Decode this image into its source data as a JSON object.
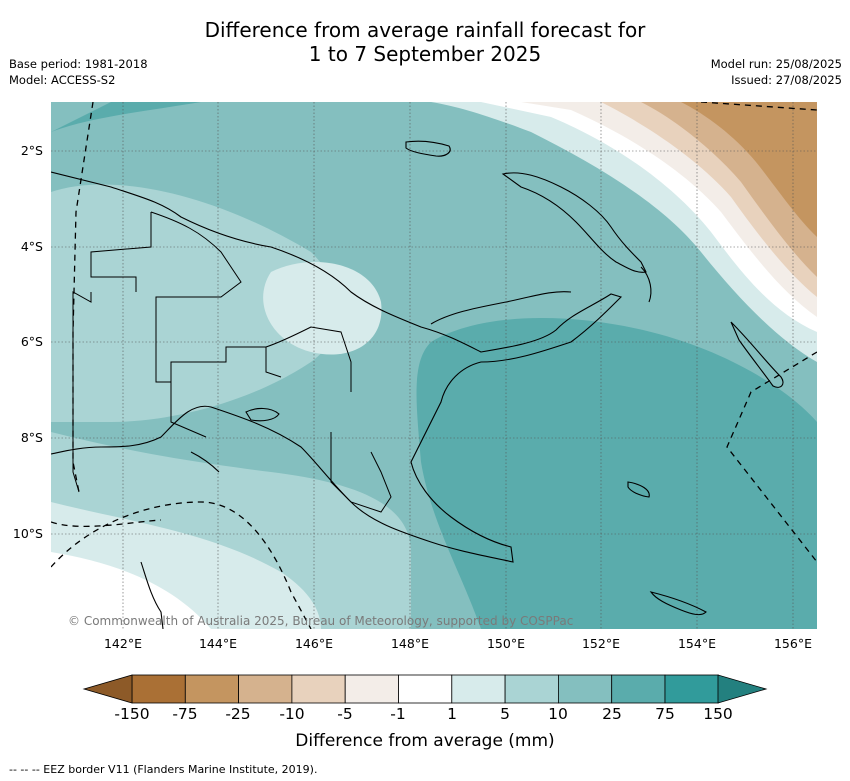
{
  "title_line1": "Difference from average rainfall forecast for",
  "title_line2": "1 to 7 September 2025",
  "base_period": "Base period: 1981-2018",
  "model": "Model: ACCESS-S2",
  "model_run": "Model run: 25/08/2025",
  "issued": "Issued: 27/08/2025",
  "copyright": "© Commonwealth of Australia 2025, Bureau of Meteorology, supported by COSPPac",
  "colorbar_label": "Difference from average (mm)",
  "footnote": "-- -- -- EEZ border V11 (Flanders Marine Institute, 2019).",
  "lat_labels": [
    "2°S",
    "4°S",
    "6°S",
    "8°S",
    "10°S"
  ],
  "lon_labels": [
    "142°E",
    "144°E",
    "146°E",
    "148°E",
    "150°E",
    "152°E",
    "154°E",
    "156°E"
  ],
  "colorbar_ticks": [
    "-150",
    "-75",
    "-25",
    "-10",
    "-5",
    "-1",
    "1",
    "5",
    "10",
    "25",
    "75",
    "150"
  ],
  "colorbar_colors": [
    "#aa7035",
    "#c49560",
    "#d5b28e",
    "#e8d2bd",
    "#f3ede8",
    "#ffffff",
    "#d7ebeb",
    "#aad4d4",
    "#84bfbf",
    "#5aacac",
    "#319b9b"
  ],
  "colorbar_under_color": "#8d5a28",
  "colorbar_over_color": "#23807f"
}
